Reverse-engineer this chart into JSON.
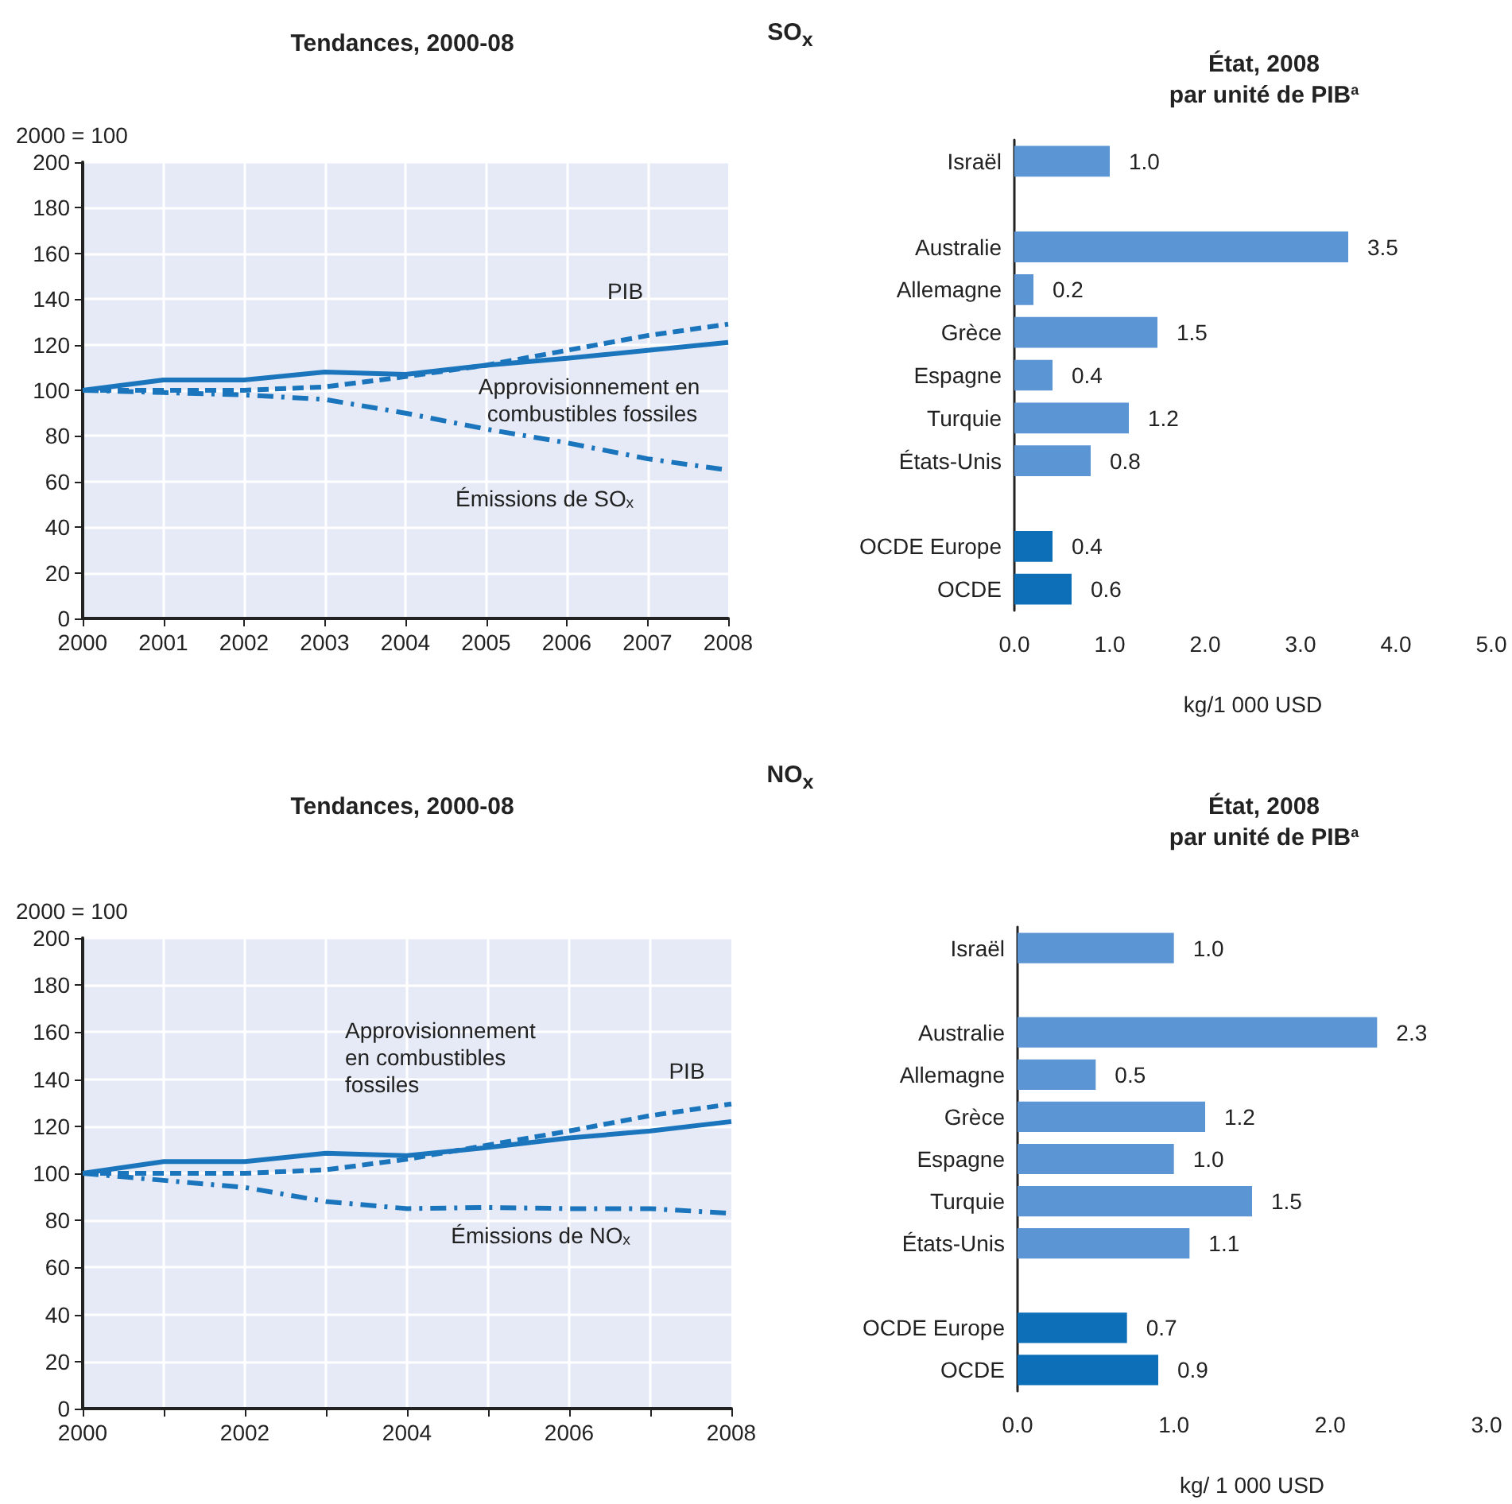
{
  "chart_data": [
    {
      "type": "line",
      "title": "Tendances, 2000-08",
      "ylabel": "2000 = 100",
      "annotations": [
        "SO$_{x}$"
      ],
      "x": [
        2000,
        2001,
        2002,
        2003,
        2004,
        2005,
        2006,
        2007,
        2008
      ],
      "xlim": [
        2000,
        2008
      ],
      "xticks": [
        2000,
        2001,
        2002,
        2003,
        2004,
        2005,
        2006,
        2007,
        2008
      ],
      "ylim": [
        0,
        200
      ],
      "yticks": [
        0,
        20,
        40,
        60,
        80,
        100,
        120,
        140,
        160,
        180,
        200
      ],
      "grid": true,
      "legend": false,
      "series": [
        {
          "name": "Approvisionnement en combustibles fossiles",
          "color": "#1a75bc",
          "line_style": "solid",
          "values": [
            100,
            104.5,
            104.5,
            108,
            107,
            111,
            114,
            117.5,
            121
          ]
        },
        {
          "name": "PIB",
          "color": "#1a75bc",
          "line_style": "dashed",
          "values": [
            100,
            100,
            100,
            101.5,
            106,
            111,
            117.5,
            124,
            129
          ]
        },
        {
          "name": "Émissions de SOₓ",
          "color": "#1a75bc",
          "line_style": "dashdot",
          "values": [
            100,
            99,
            98,
            96,
            90,
            83,
            77,
            70,
            65
          ]
        }
      ]
    },
    {
      "type": "bar",
      "orientation": "horizontal",
      "title": "État, 2008",
      "subtitle": "par unité de PIB$^{a}$",
      "xlabel": "kg/1 000 USD",
      "categories": [
        "Israël",
        null,
        "Australie",
        "Allemagne",
        "Grèce",
        "Espagne",
        "Turquie",
        "États-Unis",
        null,
        "OCDE Europe",
        "OCDE"
      ],
      "values": [
        1.0,
        null,
        3.5,
        0.2,
        1.5,
        0.4,
        1.2,
        0.8,
        null,
        0.4,
        0.6
      ],
      "colors": [
        "#5b95d3",
        null,
        "#5b95d3",
        "#5b95d3",
        "#5b95d3",
        "#5b95d3",
        "#5b95d3",
        "#5b95d3",
        null,
        "#0d6fb8",
        "#0d6fb8"
      ],
      "value_labels": [
        "1.0",
        null,
        "3.5",
        "0.2",
        "1.5",
        "0.4",
        "1.2",
        "0.8",
        null,
        "0.4",
        "0.6"
      ],
      "xlim": [
        0,
        5
      ],
      "xticks": [
        {
          "value": 0,
          "label": "0.0"
        },
        {
          "value": 1,
          "label": "1.0"
        },
        {
          "value": 2,
          "label": "2.0"
        },
        {
          "value": 3,
          "label": "3.0"
        },
        {
          "value": 4,
          "label": "4.0"
        },
        {
          "value": 5,
          "label": "5.0"
        }
      ],
      "legend": false
    },
    {
      "type": "line",
      "title": "Tendances, 2000-08",
      "ylabel": "2000 = 100",
      "annotations": [
        "NO$_{x}$"
      ],
      "x": [
        2000,
        2001,
        2002,
        2003,
        2004,
        2005,
        2006,
        2007,
        2008
      ],
      "xlim": [
        2000,
        2008
      ],
      "xticks": [
        2000,
        {
          "value": 2001,
          "label": null
        },
        2002,
        {
          "value": 2003,
          "label": null
        },
        2004,
        {
          "value": 2005,
          "label": null
        },
        2006,
        {
          "value": 2007,
          "label": null
        },
        2008
      ],
      "ylim": [
        0,
        200
      ],
      "yticks": [
        0,
        20,
        40,
        60,
        80,
        100,
        120,
        140,
        160,
        180,
        200
      ],
      "grid": true,
      "legend": false,
      "series": [
        {
          "name": "Approvisionnement en combustibles fossiles",
          "color": "#1a75bc",
          "line_style": "solid",
          "values": [
            100,
            105,
            105,
            108.5,
            107.5,
            111,
            115,
            118,
            122
          ]
        },
        {
          "name": "PIB",
          "color": "#1a75bc",
          "line_style": "dashed",
          "values": [
            100,
            100,
            100,
            101.5,
            106,
            112,
            118,
            124.5,
            129.5
          ]
        },
        {
          "name": "Émissions de NOₓ",
          "color": "#1a75bc",
          "line_style": "dashdot",
          "values": [
            100,
            97,
            94,
            88,
            85,
            85.5,
            85,
            85,
            83
          ]
        }
      ]
    },
    {
      "type": "bar",
      "orientation": "horizontal",
      "title": "État, 2008",
      "subtitle": "par unité de PIB$^{a}$",
      "xlabel": "kg/ 1 000 USD",
      "categories": [
        "Israël",
        null,
        "Australie",
        "Allemagne",
        "Grèce",
        "Espagne",
        "Turquie",
        "États-Unis",
        null,
        "OCDE Europe",
        "OCDE"
      ],
      "values": [
        1.0,
        null,
        2.3,
        0.5,
        1.2,
        1.0,
        1.5,
        1.1,
        null,
        0.7,
        0.9
      ],
      "colors": [
        "#5b95d3",
        null,
        "#5b95d3",
        "#5b95d3",
        "#5b95d3",
        "#5b95d3",
        "#5b95d3",
        "#5b95d3",
        null,
        "#0d6fb8",
        "#0d6fb8"
      ],
      "value_labels": [
        "1.0",
        null,
        "2.3",
        "0.5",
        "1.2",
        "1.0",
        "1.5",
        "1.1",
        null,
        "0.7",
        "0.9"
      ],
      "xlim": [
        0,
        3
      ],
      "xticks": [
        {
          "value": 0,
          "label": "0.0"
        },
        {
          "value": 1,
          "label": "1.0"
        },
        {
          "value": 2,
          "label": "2.0"
        },
        {
          "value": 3,
          "label": "3.0"
        }
      ],
      "legend": false
    }
  ]
}
